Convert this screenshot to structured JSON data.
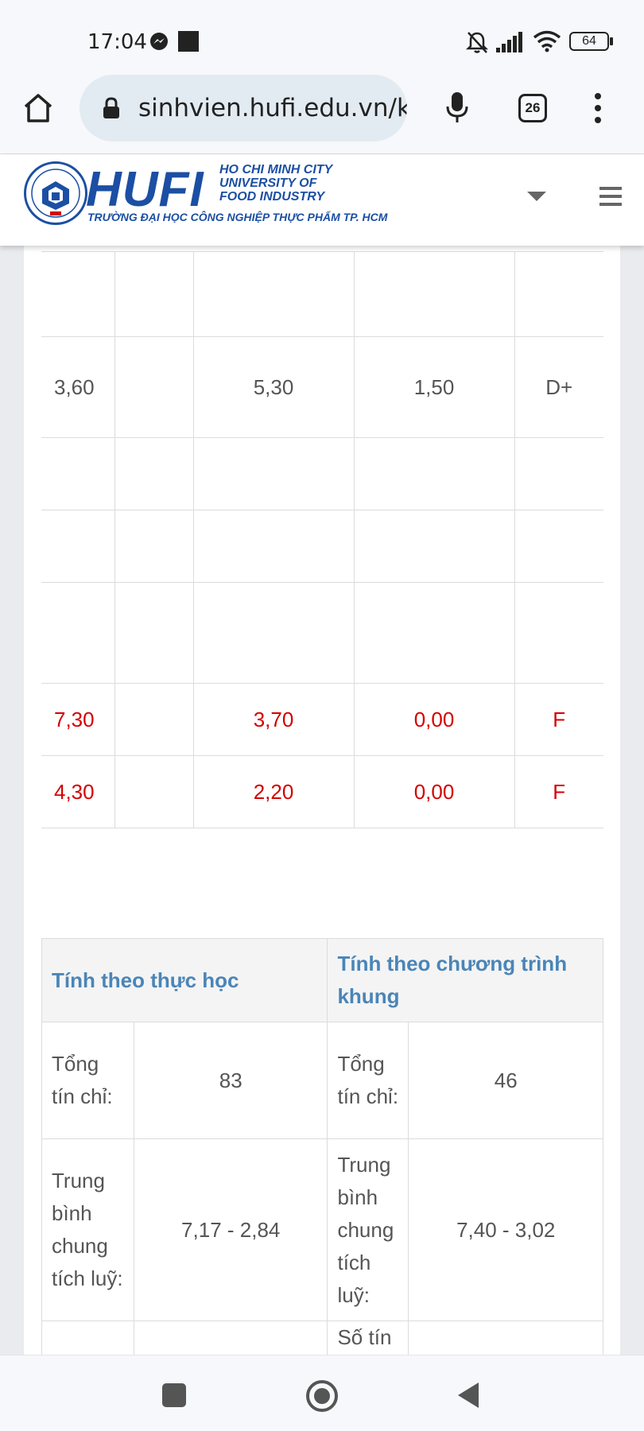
{
  "status_bar": {
    "time": "17:04",
    "battery": "64"
  },
  "browser": {
    "url": "sinhvien.hufi.edu.vn/k",
    "tab_count": "26"
  },
  "header": {
    "logo_text": "HUFI",
    "logo_line1": "HO CHI MINH CITY",
    "logo_line2": "UNIVERSITY OF",
    "logo_line3": "FOOD INDUSTRY",
    "logo_vietnamese": "TRƯỜNG ĐẠI HỌC CÔNG NGHIỆP THỰC PHẨM TP. HCM"
  },
  "grades": {
    "rows": [
      {
        "c1": "",
        "c2": "",
        "c3": "",
        "c4": "",
        "c5": "",
        "fail": false
      },
      {
        "c1": "3,60",
        "c2": "",
        "c3": "5,30",
        "c4": "1,50",
        "c5": "D+",
        "fail": false
      },
      {
        "c1": "",
        "c2": "",
        "c3": "",
        "c4": "",
        "c5": "",
        "fail": false
      },
      {
        "c1": "",
        "c2": "",
        "c3": "",
        "c4": "",
        "c5": "",
        "fail": false
      },
      {
        "c1": "",
        "c2": "",
        "c3": "",
        "c4": "",
        "c5": "",
        "fail": false
      },
      {
        "c1": "7,30",
        "c2": "",
        "c3": "3,70",
        "c4": "0,00",
        "c5": "F",
        "fail": true
      },
      {
        "c1": "4,30",
        "c2": "",
        "c3": "2,20",
        "c4": "0,00",
        "c5": "F",
        "fail": true
      }
    ]
  },
  "summary": {
    "header_actual": "Tính theo thực học",
    "header_program": "Tính theo chương trình khung",
    "rows": [
      {
        "label_a": "Tổng tín chỉ:",
        "value_a": "83",
        "label_b": "Tổng tín chỉ:",
        "value_b": "46"
      },
      {
        "label_a": "Trung bình chung tích luỹ:",
        "value_a": "7,17 - 2,84",
        "label_b": "Trung bình chung tích luỹ:",
        "value_b": "7,40 - 3,02"
      },
      {
        "label_a": "",
        "value_a": "",
        "label_b": "Số tín",
        "value_b": ""
      }
    ]
  },
  "colors": {
    "fail": "#d40000",
    "header_blue": "#4a85b8",
    "logo_blue": "#1b4fa3"
  }
}
